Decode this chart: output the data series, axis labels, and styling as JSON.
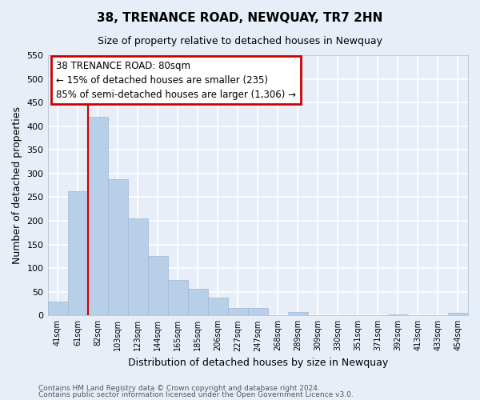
{
  "title": "38, TRENANCE ROAD, NEWQUAY, TR7 2HN",
  "subtitle": "Size of property relative to detached houses in Newquay",
  "xlabel": "Distribution of detached houses by size in Newquay",
  "ylabel": "Number of detached properties",
  "bar_labels": [
    "41sqm",
    "61sqm",
    "82sqm",
    "103sqm",
    "123sqm",
    "144sqm",
    "165sqm",
    "185sqm",
    "206sqm",
    "227sqm",
    "247sqm",
    "268sqm",
    "289sqm",
    "309sqm",
    "330sqm",
    "351sqm",
    "371sqm",
    "392sqm",
    "413sqm",
    "433sqm",
    "454sqm"
  ],
  "bar_values": [
    30,
    262,
    420,
    288,
    205,
    125,
    75,
    57,
    38,
    15,
    15,
    0,
    8,
    0,
    0,
    0,
    0,
    3,
    0,
    0,
    5
  ],
  "bar_color": "#b8cfe8",
  "bar_edge_color": "#a0b8d8",
  "vline_x": 1.5,
  "vline_color": "#cc0000",
  "ylim": [
    0,
    550
  ],
  "yticks": [
    0,
    50,
    100,
    150,
    200,
    250,
    300,
    350,
    400,
    450,
    500,
    550
  ],
  "annotation_title": "38 TRENANCE ROAD: 80sqm",
  "annotation_line1": "← 15% of detached houses are smaller (235)",
  "annotation_line2": "85% of semi-detached houses are larger (1,306) →",
  "annotation_box_color": "#ffffff",
  "annotation_box_edge": "#cc0000",
  "footer1": "Contains HM Land Registry data © Crown copyright and database right 2024.",
  "footer2": "Contains public sector information licensed under the Open Government Licence v3.0.",
  "background_color": "#e8eef8",
  "plot_bg_color": "#e8eef8",
  "grid_color": "#ffffff"
}
